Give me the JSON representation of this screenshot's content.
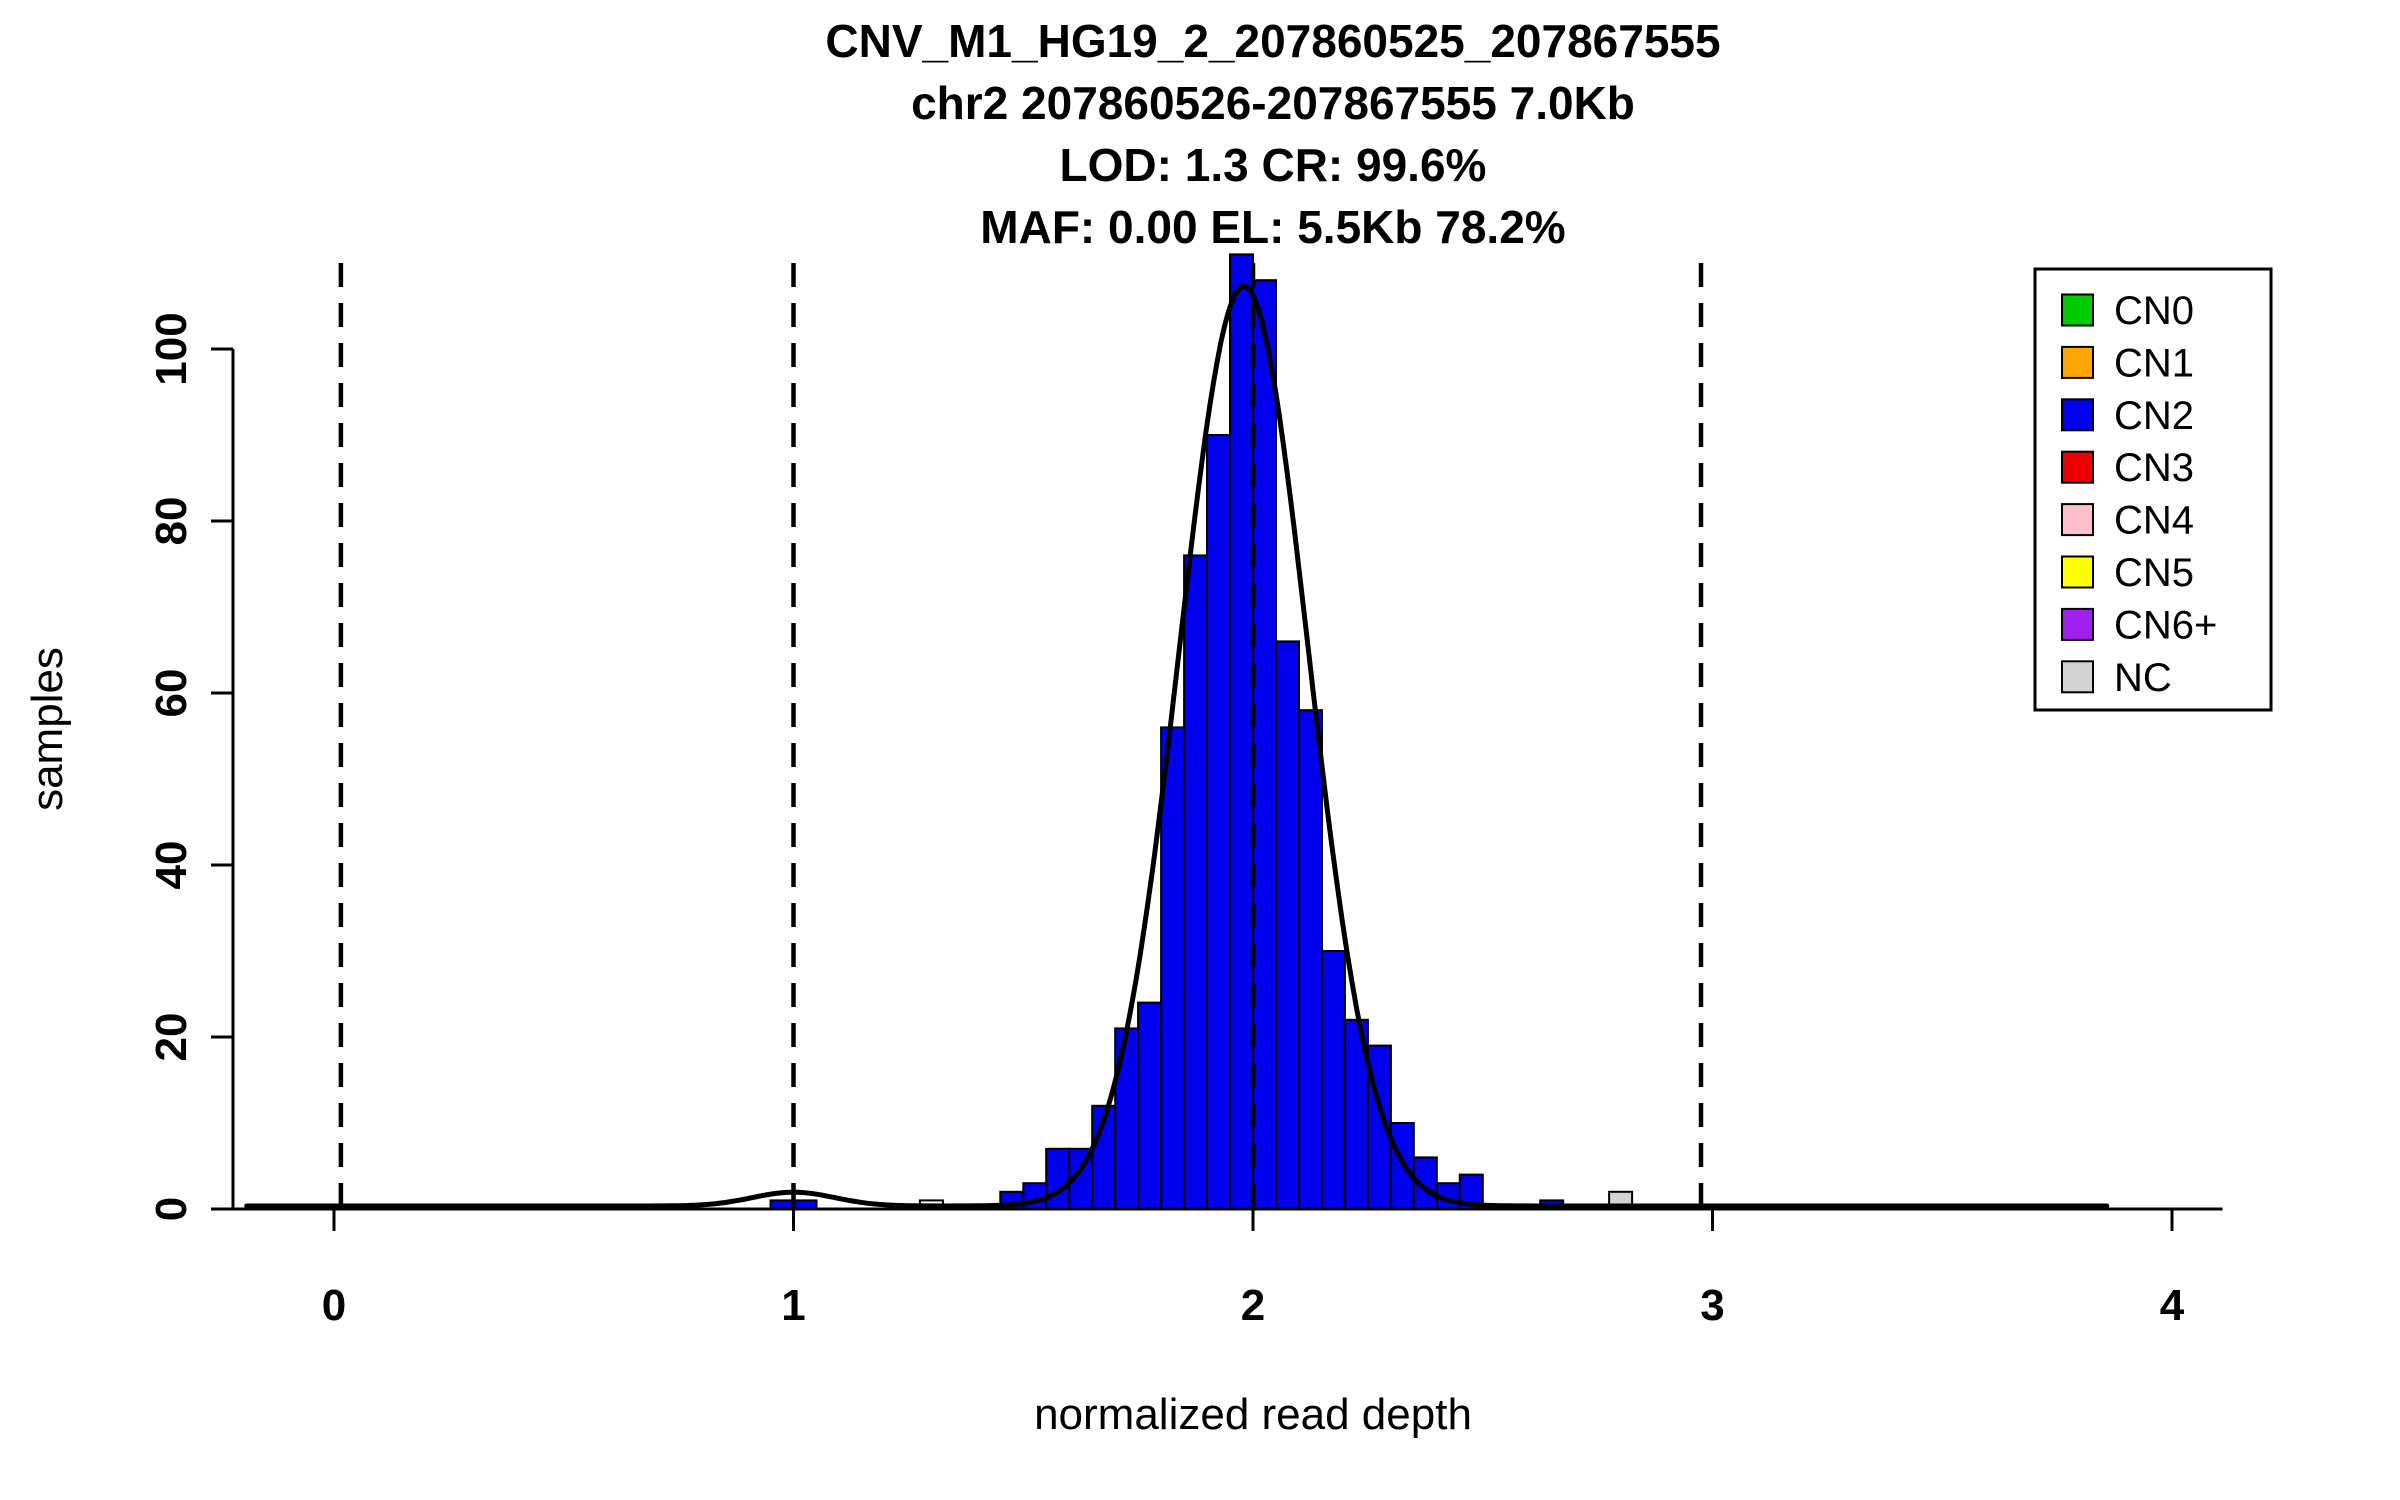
{
  "figure": {
    "background": "#FFFFFF"
  },
  "chart_data": {
    "type": "bar",
    "title_lines": [
      "CNV_M1_HG19_2_207860525_207867555",
      "chr2 207860526-207867555 7.0Kb",
      "LOD: 1.3 CR: 99.6%",
      "MAF: 0.00 EL: 5.5Kb 78.2%"
    ],
    "xlabel": "normalized read depth",
    "ylabel": "samples",
    "x_ticks": [
      0,
      1,
      2,
      3,
      4
    ],
    "y_ticks": [
      0,
      20,
      40,
      60,
      80,
      100
    ],
    "xlim": [
      -0.22,
      4.11
    ],
    "ylim": [
      0,
      111
    ],
    "grid": false,
    "legend_position": "top-right",
    "dashed_lines_x": [
      0.015,
      1.0,
      2.0,
      2.975
    ],
    "bar_width": 0.05,
    "bars": [
      {
        "x": 0.95,
        "h": 1,
        "color": "#0000EE"
      },
      {
        "x": 1.0,
        "h": 1,
        "color": "#0000EE"
      },
      {
        "x": 1.275,
        "h": 1,
        "color": "#FFFFFF"
      },
      {
        "x": 1.45,
        "h": 2,
        "color": "#0000EE"
      },
      {
        "x": 1.5,
        "h": 3,
        "color": "#0000EE"
      },
      {
        "x": 1.55,
        "h": 7,
        "color": "#0000EE"
      },
      {
        "x": 1.6,
        "h": 7,
        "color": "#0000EE"
      },
      {
        "x": 1.65,
        "h": 12,
        "color": "#0000EE"
      },
      {
        "x": 1.7,
        "h": 21,
        "color": "#0000EE"
      },
      {
        "x": 1.75,
        "h": 24,
        "color": "#0000EE"
      },
      {
        "x": 1.8,
        "h": 56,
        "color": "#0000EE"
      },
      {
        "x": 1.85,
        "h": 76,
        "color": "#0000EE"
      },
      {
        "x": 1.9,
        "h": 90,
        "color": "#0000EE"
      },
      {
        "x": 1.95,
        "h": 111,
        "color": "#0000EE"
      },
      {
        "x": 2.0,
        "h": 108,
        "color": "#0000EE"
      },
      {
        "x": 2.05,
        "h": 66,
        "color": "#0000EE"
      },
      {
        "x": 2.1,
        "h": 58,
        "color": "#0000EE"
      },
      {
        "x": 2.15,
        "h": 30,
        "color": "#0000EE"
      },
      {
        "x": 2.2,
        "h": 22,
        "color": "#0000EE"
      },
      {
        "x": 2.25,
        "h": 19,
        "color": "#0000EE"
      },
      {
        "x": 2.3,
        "h": 10,
        "color": "#0000EE"
      },
      {
        "x": 2.35,
        "h": 6,
        "color": "#0000EE"
      },
      {
        "x": 2.4,
        "h": 3,
        "color": "#0000EE"
      },
      {
        "x": 2.45,
        "h": 4,
        "color": "#0000EE"
      },
      {
        "x": 2.625,
        "h": 1,
        "color": "#0000EE"
      },
      {
        "x": 2.775,
        "h": 2,
        "color": "#D3D3D3"
      }
    ],
    "curve": {
      "baseline": 0.35,
      "x_range": [
        -0.19,
        3.86
      ],
      "components": [
        {
          "mean": 1.98,
          "sd": 0.14,
          "peak": 107
        },
        {
          "mean": 1.0,
          "sd": 0.09,
          "peak": 1.6
        }
      ]
    },
    "legend": [
      {
        "label": "CN0",
        "color": "#00CC00"
      },
      {
        "label": "CN1",
        "color": "#FFA500"
      },
      {
        "label": "CN2",
        "color": "#0000EE"
      },
      {
        "label": "CN3",
        "color": "#EE0000"
      },
      {
        "label": "CN4",
        "color": "#FFC0CB"
      },
      {
        "label": "CN5",
        "color": "#FFFF00"
      },
      {
        "label": "CN6+",
        "color": "#A020F0"
      },
      {
        "label": "NC",
        "color": "#D3D3D3"
      }
    ]
  }
}
